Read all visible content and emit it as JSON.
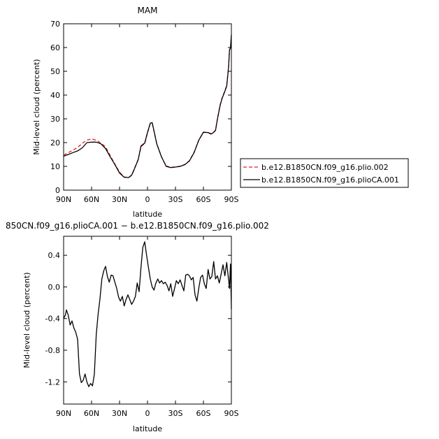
{
  "chart_data": [
    {
      "type": "line",
      "title": "MAM",
      "xlabel": "latitude",
      "ylabel": "Mid-level cloud (percent)",
      "xlim": [
        90,
        -90
      ],
      "ylim": [
        0,
        70
      ],
      "xticks": [
        90,
        60,
        30,
        0,
        -30,
        -60,
        -90
      ],
      "xtick_labels": [
        "90N",
        "60N",
        "30N",
        "0",
        "30S",
        "60S",
        "90S"
      ],
      "yticks": [
        0,
        10,
        20,
        30,
        40,
        50,
        60,
        70
      ],
      "ytick_labels": [
        "0",
        "10",
        "20",
        "30",
        "40",
        "50",
        "60",
        "70"
      ],
      "legend_position": "right",
      "series": [
        {
          "name": "b.e12.B1850CN.f09_g16.plio.002",
          "color": "#e02020",
          "dash": "dashed",
          "x": [
            90,
            85,
            80,
            75,
            70,
            65,
            60,
            55,
            50,
            45,
            40,
            35,
            30,
            25,
            20,
            17,
            15,
            10,
            7,
            5,
            3,
            0,
            -3,
            -5,
            -8,
            -10,
            -15,
            -20,
            -25,
            -30,
            -35,
            -40,
            -45,
            -50,
            -55,
            -60,
            -65,
            -68,
            -70,
            -73,
            -75,
            -78,
            -80,
            -82,
            -85,
            -87,
            -88,
            -89,
            -90
          ],
          "y": [
            14.7,
            15.8,
            16.8,
            18.0,
            19.7,
            21.0,
            21.6,
            21.0,
            19.8,
            18.2,
            14.5,
            11.0,
            7.6,
            5.5,
            5.4,
            6.4,
            8.2,
            13.0,
            18.2,
            19.0,
            19.5,
            24.0,
            28.0,
            28.2,
            23.0,
            19.5,
            14.0,
            10.2,
            9.6,
            9.8,
            10.1,
            10.8,
            12.4,
            16.0,
            21.0,
            24.2,
            24.3,
            23.8,
            24.0,
            25.3,
            30.0,
            36.0,
            38.8,
            40.8,
            44.0,
            52.0,
            59.0,
            60.0,
            65.0
          ]
        },
        {
          "name": "b.e12.B1850CN.f09_g16.plioCA.001",
          "color": "#000000",
          "dash": "solid",
          "x": [
            90,
            85,
            80,
            75,
            70,
            65,
            60,
            55,
            50,
            45,
            40,
            35,
            30,
            25,
            20,
            17,
            15,
            10,
            7,
            5,
            3,
            0,
            -3,
            -5,
            -8,
            -10,
            -15,
            -20,
            -25,
            -30,
            -35,
            -40,
            -45,
            -50,
            -55,
            -60,
            -65,
            -68,
            -70,
            -73,
            -75,
            -78,
            -80,
            -82,
            -85,
            -87,
            -88,
            -89,
            -90
          ],
          "y": [
            14.3,
            15.0,
            15.8,
            16.5,
            17.8,
            20.0,
            20.2,
            20.2,
            19.5,
            17.5,
            14.0,
            10.8,
            7.2,
            5.4,
            5.3,
            6.3,
            8.0,
            12.8,
            18.6,
            19.2,
            19.8,
            24.3,
            28.2,
            28.4,
            23.0,
            19.4,
            14.0,
            10.0,
            9.5,
            9.7,
            10.0,
            10.7,
            12.3,
            15.8,
            21.0,
            24.4,
            24.2,
            23.6,
            24.0,
            25.1,
            29.8,
            35.8,
            38.6,
            40.5,
            43.7,
            51.8,
            58.8,
            59.8,
            65.5
          ]
        }
      ]
    },
    {
      "type": "line",
      "title": "850CN.f09_g16.plioCA.001 − b.e12.B1850CN.f09_g16.plio.002",
      "xlabel": "latitude",
      "ylabel": "Mid-level cloud (percent)",
      "xlim": [
        90,
        -90
      ],
      "ylim": [
        -1.48,
        0.64
      ],
      "xticks": [
        90,
        60,
        30,
        0,
        -30,
        -60,
        -90
      ],
      "xtick_labels": [
        "90N",
        "60N",
        "30N",
        "0",
        "30S",
        "60S",
        "90S"
      ],
      "yticks": [
        0.4,
        0.0,
        -0.4,
        -0.8,
        -1.2
      ],
      "ytick_labels": [
        "0.4",
        "0.0",
        "-0.4",
        "-0.8",
        "-1.2"
      ],
      "series": [
        {
          "color": "#000000",
          "dash": "solid",
          "x": [
            90,
            88,
            87,
            85,
            83,
            81,
            79,
            77,
            75,
            73,
            71,
            69,
            67,
            65,
            63,
            61,
            59,
            57,
            55,
            53,
            51,
            49,
            47,
            45,
            43,
            41,
            39,
            37,
            35,
            33,
            31,
            29,
            27,
            25,
            23,
            21,
            19,
            17,
            15,
            13,
            11,
            9,
            7,
            5,
            3,
            1,
            -1,
            -3,
            -5,
            -7,
            -9,
            -11,
            -13,
            -15,
            -17,
            -19,
            -21,
            -23,
            -25,
            -27,
            -29,
            -31,
            -33,
            -35,
            -37,
            -39,
            -41,
            -43,
            -45,
            -47,
            -49,
            -51,
            -53,
            -55,
            -57,
            -59,
            -61,
            -63,
            -65,
            -67,
            -69,
            -71,
            -73,
            -75,
            -77,
            -79,
            -81,
            -83,
            -85,
            -87,
            -88,
            -89,
            -90
          ],
          "y": [
            -0.4,
            -0.35,
            -0.29,
            -0.36,
            -0.48,
            -0.43,
            -0.52,
            -0.57,
            -0.66,
            -1.1,
            -1.21,
            -1.18,
            -1.1,
            -1.2,
            -1.26,
            -1.22,
            -1.25,
            -1.1,
            -0.6,
            -0.35,
            -0.15,
            0.1,
            0.2,
            0.26,
            0.13,
            0.06,
            0.15,
            0.14,
            0.06,
            -0.02,
            -0.13,
            -0.18,
            -0.12,
            -0.24,
            -0.16,
            -0.1,
            -0.16,
            -0.22,
            -0.18,
            -0.12,
            0.05,
            -0.06,
            0.25,
            0.5,
            0.57,
            0.4,
            0.25,
            0.1,
            0.0,
            -0.04,
            0.05,
            0.1,
            0.05,
            0.08,
            0.04,
            0.06,
            0.02,
            -0.05,
            0.04,
            -0.12,
            -0.02,
            0.08,
            0.04,
            0.09,
            0.02,
            -0.05,
            0.15,
            0.16,
            0.14,
            0.09,
            0.12,
            -0.1,
            -0.18,
            -0.02,
            0.12,
            0.15,
            0.04,
            -0.02,
            0.22,
            0.1,
            0.13,
            0.32,
            0.1,
            0.14,
            0.05,
            0.16,
            0.28,
            0.14,
            0.31,
            0.09,
            -0.02,
            0.29,
            -0.28
          ]
        }
      ]
    }
  ]
}
